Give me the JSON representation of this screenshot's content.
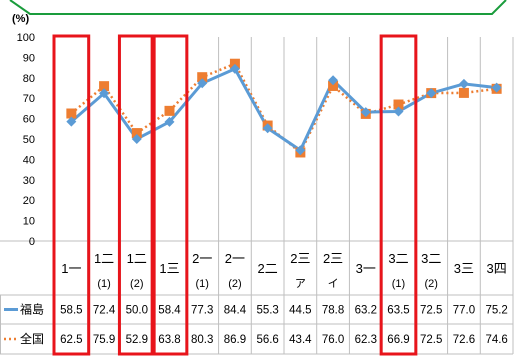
{
  "chart_data": {
    "type": "line",
    "unit_label": "(%)",
    "ylim": [
      0,
      100
    ],
    "y_ticks": [
      0,
      10,
      20,
      30,
      40,
      50,
      60,
      70,
      80,
      90,
      100
    ],
    "grid": "vertical",
    "categories": [
      {
        "main": "1一",
        "sub": ""
      },
      {
        "main": "1二",
        "sub": "(1)"
      },
      {
        "main": "1二",
        "sub": "(2)"
      },
      {
        "main": "1三",
        "sub": ""
      },
      {
        "main": "2一",
        "sub": "(1)"
      },
      {
        "main": "2一",
        "sub": "(2)"
      },
      {
        "main": "2二",
        "sub": ""
      },
      {
        "main": "2三",
        "sub": "ア"
      },
      {
        "main": "2三",
        "sub": "イ"
      },
      {
        "main": "3一",
        "sub": ""
      },
      {
        "main": "3二",
        "sub": "(1)"
      },
      {
        "main": "3二",
        "sub": "(2)"
      },
      {
        "main": "3三",
        "sub": ""
      },
      {
        "main": "3四",
        "sub": ""
      }
    ],
    "series": [
      {
        "name": "福島",
        "color": "#5b9bd5",
        "style": "solid",
        "marker": "diamond",
        "values": [
          58.5,
          72.4,
          50.0,
          58.4,
          77.3,
          84.4,
          55.3,
          44.5,
          78.8,
          63.2,
          63.5,
          72.5,
          77.0,
          75.2
        ]
      },
      {
        "name": "全国",
        "color": "#ed7d31",
        "style": "dotted",
        "marker": "square",
        "values": [
          62.5,
          75.9,
          52.9,
          63.8,
          80.3,
          86.9,
          56.6,
          43.4,
          76.0,
          62.3,
          66.9,
          72.5,
          72.6,
          74.6
        ]
      }
    ],
    "highlighted_categories": [
      0,
      2,
      3,
      10
    ],
    "highlight_color": "#e8141b",
    "header_border_color": "#1a9c3c"
  }
}
